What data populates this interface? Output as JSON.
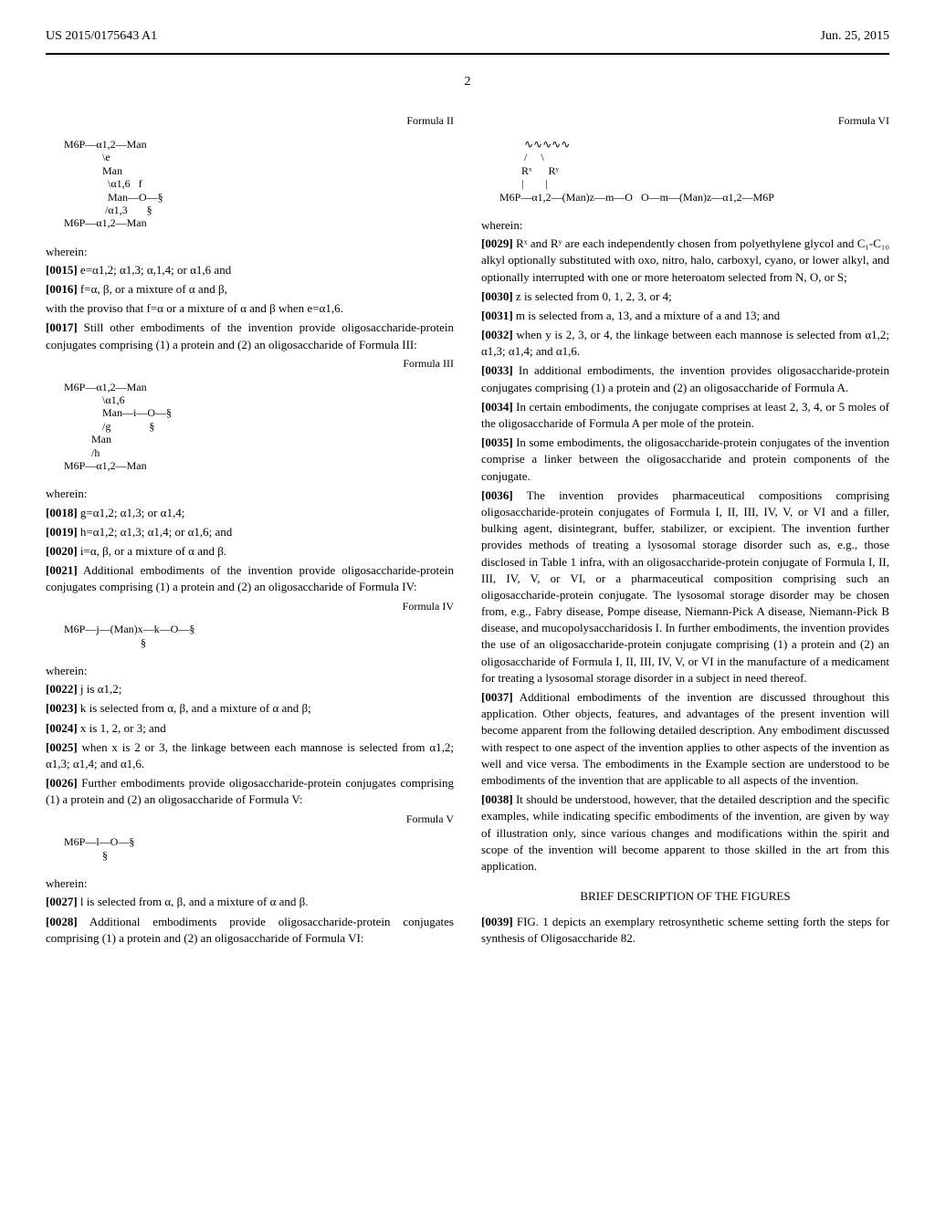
{
  "header": {
    "left": "US 2015/0175643 A1",
    "right": "Jun. 25, 2015"
  },
  "page_number": "2",
  "left_col": {
    "formula2_label": "Formula II",
    "formula2": "M6P—α1,2—Man\n              \\e\n              Man\n                \\α1,6   f\n                Man—O—§\n               /α1,3       §\nM6P—α1,2—Man",
    "wherein1": "wherein:",
    "p15_num": "[0015]",
    "p15": "    e=α1,2; α1,3; α,1,4; or α1,6 and",
    "p16_num": "[0016]",
    "p16": "    f=α, β, or a mixture of α and β,",
    "p16b": "with the proviso that f=α or a mixture of α and β when e=α1,6.",
    "p17_num": "[0017]",
    "p17": "    Still other embodiments of the invention provide oligosaccharide-protein conjugates comprising (1) a protein and (2) an oligosaccharide of Formula III:",
    "formula3_label": "Formula III",
    "formula3": "M6P—α1,2—Man\n              \\α1,6\n              Man—i—O—§\n              /g              §\n          Man\n          /h\nM6P—α1,2—Man",
    "wherein2": "wherein:",
    "p18_num": "[0018]",
    "p18": "    g=α1,2; α1,3; or α1,4;",
    "p19_num": "[0019]",
    "p19": "    h=α1,2; α1,3; α1,4; or α1,6; and",
    "p20_num": "[0020]",
    "p20": "    i=α, β, or a mixture of α and β.",
    "p21_num": "[0021]",
    "p21": "    Additional embodiments of the invention provide oligosaccharide-protein conjugates comprising (1) a protein and (2) an oligosaccharide of Formula IV:",
    "formula4_label": "Formula IV",
    "formula4": "M6P—j—(Man)x—k—O—§\n                            §",
    "wherein3": "wherein:",
    "p22_num": "[0022]",
    "p22": "    j is α1,2;",
    "p23_num": "[0023]",
    "p23": "    k is selected from α, β, and a mixture of α and β;",
    "p24_num": "[0024]",
    "p24": "    x is 1, 2, or 3; and",
    "p25_num": "[0025]",
    "p25": "    when x is 2 or 3, the linkage between each mannose is selected from α1,2; α1,3; α1,4; and α1,6.",
    "p26_num": "[0026]",
    "p26": "    Further embodiments provide oligosaccharide-protein conjugates comprising (1) a protein and (2) an oligosaccharide of Formula V:",
    "formula5_label": "Formula V",
    "formula5": "M6P—l—O—§\n              §",
    "wherein4": "wherein:",
    "p27_num": "[0027]",
    "p27": "    l is selected from α, β, and a mixture of α and β.",
    "p28_num": "[0028]",
    "p28": "    Additional embodiments provide oligosaccharide-protein conjugates comprising (1) a protein and (2) an oligosaccharide of Formula VI:"
  },
  "right_col": {
    "formula6_label": "Formula VI",
    "formula6": "         ∿∿∿∿∿\n         /     \\\n        Rˣ      Rʸ\n        |        |\nM6P—α1,2—(Man)z—m—O   O—m—(Man)z—α1,2—M6P",
    "wherein5": "wherein:",
    "p29_num": "[0029]",
    "p29": "    Rˣ and Rʸ are each independently chosen from polyethylene glycol and C₁-C₁₀ alkyl optionally substituted with oxo, nitro, halo, carboxyl, cyano, or lower alkyl, and optionally interrupted with one or more heteroatom selected from N, O, or S;",
    "p30_num": "[0030]",
    "p30": "    z is selected from 0, 1, 2, 3, or 4;",
    "p31_num": "[0031]",
    "p31": "    m is selected from a, 13, and a mixture of a and 13; and",
    "p32_num": "[0032]",
    "p32": "    when y is 2, 3, or 4, the linkage between each mannose is selected from α1,2; α1,3; α1,4; and α1,6.",
    "p33_num": "[0033]",
    "p33": "    In additional embodiments, the invention provides oligosaccharide-protein conjugates comprising (1) a protein and (2) an oligosaccharide of Formula A.",
    "p34_num": "[0034]",
    "p34": "    In certain embodiments, the conjugate comprises at least 2, 3, 4, or 5 moles of the oligosaccharide of Formula A per mole of the protein.",
    "p35_num": "[0035]",
    "p35": "    In some embodiments, the oligosaccharide-protein conjugates of the invention comprise a linker between the oligosaccharide and protein components of the conjugate.",
    "p36_num": "[0036]",
    "p36": "    The invention provides pharmaceutical compositions comprising oligosaccharide-protein conjugates of Formula I, II, III, IV, V, or VI and a filler, bulking agent, disintegrant, buffer, stabilizer, or excipient. The invention further provides methods of treating a lysosomal storage disorder such as, e.g., those disclosed in Table 1 infra, with an oligosaccharide-protein conjugate of Formula I, II, III, IV, V, or VI, or a pharmaceutical composition comprising such an oligosaccharide-protein conjugate. The lysosomal storage disorder may be chosen from, e.g., Fabry disease, Pompe disease, Niemann-Pick A disease, Niemann-Pick B disease, and mucopolysaccharidosis I. In further embodiments, the invention provides the use of an oligosaccharide-protein conjugate comprising (1) a protein and (2) an oligosaccharide of Formula I, II, III, IV, V, or VI in the manufacture of a medicament for treating a lysosomal storage disorder in a subject in need thereof.",
    "p37_num": "[0037]",
    "p37": "    Additional embodiments of the invention are discussed throughout this application. Other objects, features, and advantages of the present invention will become apparent from the following detailed description. Any embodiment discussed with respect to one aspect of the invention applies to other aspects of the invention as well and vice versa. The embodiments in the Example section are understood to be embodiments of the invention that are applicable to all aspects of the invention.",
    "p38_num": "[0038]",
    "p38": "    It should be understood, however, that the detailed description and the specific examples, while indicating specific embodiments of the invention, are given by way of illustration only, since various changes and modifications within the spirit and scope of the invention will become apparent to those skilled in the art from this application.",
    "section_title": "BRIEF DESCRIPTION OF THE FIGURES",
    "p39_num": "[0039]",
    "p39": "    FIG. 1 depicts an exemplary retrosynthetic scheme setting forth the steps for synthesis of Oligosaccharide 82."
  }
}
